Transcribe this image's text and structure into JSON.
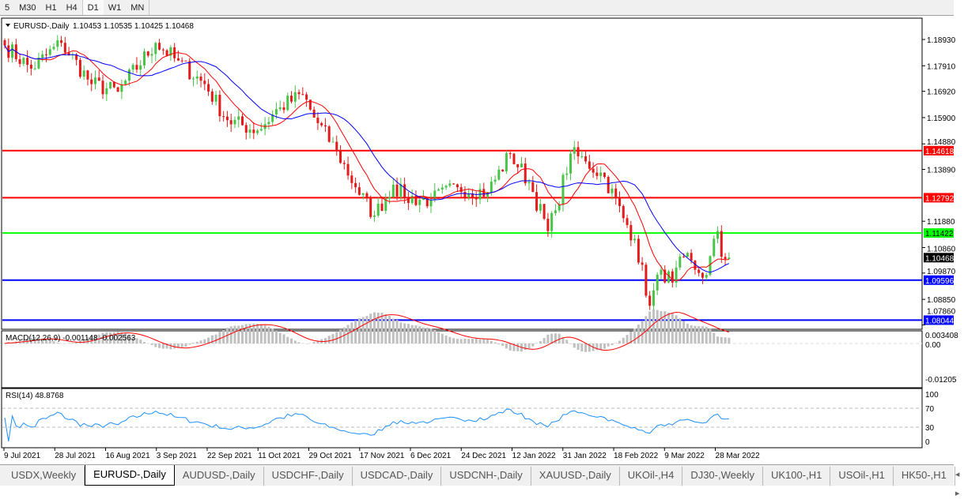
{
  "toolbar": {
    "timeframes": [
      "5",
      "M30",
      "H1",
      "H4",
      "D1",
      "W1",
      "MN"
    ],
    "active": "D1"
  },
  "chart": {
    "header_label": "EURUSD-,Daily",
    "ohlc": "1.10453 1.10535 1.10425 1.10468",
    "price_ticks": [
      "1.18930",
      "1.17910",
      "1.16920",
      "1.15900",
      "1.14880",
      "1.13890",
      "1.11880",
      "1.10860",
      "1.09870",
      "1.08850",
      "1.07860"
    ],
    "current_price": "1.10468",
    "levels": [
      {
        "price": "1.14618",
        "color": "#ff0000"
      },
      {
        "price": "1.12792",
        "color": "#ff0000"
      },
      {
        "price": "1.11422",
        "color": "#00ff00"
      },
      {
        "price": "1.09596",
        "color": "#0000ff"
      },
      {
        "price": "1.08044",
        "color": "#0000ff"
      }
    ],
    "date_labels": [
      "9 Jul 2021",
      "28 Jul 2021",
      "16 Aug 2021",
      "3 Sep 2021",
      "22 Sep 2021",
      "11 Oct 2021",
      "29 Oct 2021",
      "17 Nov 2021",
      "6 Dec 2021",
      "24 Dec 2021",
      "12 Jan 2022",
      "31 Jan 2022",
      "18 Feb 2022",
      "9 Mar 2022",
      "28 Mar 2022"
    ],
    "bull_color": "#49c449",
    "bear_color": "#e31b1b",
    "ma_fast_color": "#ff0000",
    "ma_slow_color": "#0000ff",
    "macd": {
      "label": "MACD(12,26,9) -0.001148 -0.002563",
      "ticks": [
        "0.003408",
        "0.00",
        "-0.01205"
      ]
    },
    "rsi": {
      "label": "RSI(14) 48.8768",
      "ticks": [
        "100",
        "70",
        "30",
        "0"
      ]
    }
  },
  "chart_data": {
    "type": "candlestick",
    "symbol": "EURUSD-",
    "timeframe": "Daily",
    "close_path": [
      [
        "2021-07-09",
        1.187
      ],
      [
        "2021-07-20",
        1.178
      ],
      [
        "2021-07-30",
        1.188
      ],
      [
        "2021-08-11",
        1.172
      ],
      [
        "2021-08-20",
        1.169
      ],
      [
        "2021-09-03",
        1.188
      ],
      [
        "2021-09-10",
        1.182
      ],
      [
        "2021-09-22",
        1.172
      ],
      [
        "2021-09-30",
        1.158
      ],
      [
        "2021-10-12",
        1.154
      ],
      [
        "2021-10-20",
        1.163
      ],
      [
        "2021-10-28",
        1.168
      ],
      [
        "2021-11-02",
        1.159
      ],
      [
        "2021-11-10",
        1.146
      ],
      [
        "2021-11-17",
        1.132
      ],
      [
        "2021-11-24",
        1.121
      ],
      [
        "2021-12-01",
        1.133
      ],
      [
        "2021-12-06",
        1.128
      ],
      [
        "2021-12-15",
        1.127
      ],
      [
        "2021-12-24",
        1.132
      ],
      [
        "2022-01-05",
        1.13
      ],
      [
        "2022-01-13",
        1.145
      ],
      [
        "2022-01-20",
        1.134
      ],
      [
        "2022-01-27",
        1.115
      ],
      [
        "2022-01-31",
        1.123
      ],
      [
        "2022-02-04",
        1.145
      ],
      [
        "2022-02-10",
        1.142
      ],
      [
        "2022-02-17",
        1.136
      ],
      [
        "2022-02-24",
        1.12
      ],
      [
        "2022-03-01",
        1.112
      ],
      [
        "2022-03-07",
        1.086
      ],
      [
        "2022-03-10",
        1.1
      ],
      [
        "2022-03-15",
        1.095
      ],
      [
        "2022-03-18",
        1.105
      ],
      [
        "2022-03-23",
        1.1
      ],
      [
        "2022-03-28",
        1.098
      ],
      [
        "2022-03-31",
        1.115
      ],
      [
        "2022-04-01",
        1.105
      ],
      [
        "2022-04-05",
        1.1047
      ]
    ]
  },
  "tabs": {
    "items": [
      "USDX,Weekly",
      "EURUSD-,Daily",
      "AUDUSD-,Daily",
      "USDCHF-,Daily",
      "USDCAD-,Daily",
      "USDCNH-,Daily",
      "XAUUSD-,Daily",
      "UKOil-,H4",
      "DJ30-,Weekly",
      "UK100-,H1",
      "USOil-,H1",
      "HK50-,H1"
    ],
    "active": 1,
    "nav": "◂ ▸"
  }
}
